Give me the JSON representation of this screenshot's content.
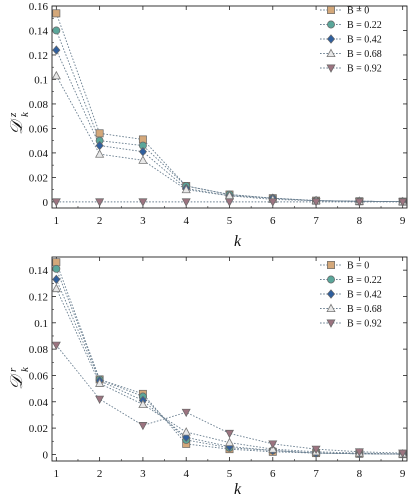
{
  "chart_data": [
    {
      "type": "line",
      "ylabel": {
        "symbol": "𝒟",
        "sup": "z",
        "sub": "k"
      },
      "xlabel": "k",
      "x": [
        1,
        2,
        3,
        4,
        5,
        6,
        7,
        8,
        9
      ],
      "xlim": [
        0.9,
        9.1
      ],
      "ylim": [
        -0.005,
        0.16
      ],
      "xticks": [
        "1",
        "2",
        "3",
        "4",
        "5",
        "6",
        "7",
        "8",
        "9"
      ],
      "yticks": [
        "0",
        "0.02",
        "0.04",
        "0.06",
        "0.08",
        "0.1",
        "0.12",
        "0.14",
        "0.16"
      ],
      "legend_position": "top-right",
      "grid": false,
      "series": [
        {
          "name": "B = 0",
          "marker": "square",
          "color": "#d4a87a",
          "values": [
            0.154,
            0.056,
            0.051,
            0.013,
            0.006,
            0.003,
            0.001,
            0.0005,
            0.0002
          ]
        },
        {
          "name": "B = 0.22",
          "marker": "circle",
          "color": "#5aa69a",
          "values": [
            0.14,
            0.05,
            0.046,
            0.013,
            0.006,
            0.003,
            0.001,
            0.0005,
            0.0002
          ]
        },
        {
          "name": "B = 0.42",
          "marker": "diamond",
          "color": "#2f5f9e",
          "values": [
            0.124,
            0.046,
            0.041,
            0.011,
            0.005,
            0.003,
            0.001,
            0.0005,
            0.0002
          ]
        },
        {
          "name": "B = 0.68",
          "marker": "triangle-up",
          "color": "#e8e8e8",
          "values": [
            0.103,
            0.039,
            0.034,
            0.01,
            0.005,
            0.002,
            0.001,
            0.0005,
            0.0002
          ]
        },
        {
          "name": "B = 0.92",
          "marker": "triangle-down",
          "color": "#9c7480",
          "values": [
            0,
            0,
            0,
            0,
            0,
            0,
            0,
            0,
            0
          ]
        }
      ]
    },
    {
      "type": "line",
      "ylabel": {
        "symbol": "𝒟",
        "sup": "r",
        "sub": "k"
      },
      "xlabel": "k",
      "x": [
        1,
        2,
        3,
        4,
        5,
        6,
        7,
        8,
        9
      ],
      "xlim": [
        0.9,
        9.1
      ],
      "ylim": [
        -0.005,
        0.15
      ],
      "xticks": [
        "1",
        "2",
        "3",
        "4",
        "5",
        "6",
        "7",
        "8",
        "9"
      ],
      "yticks": [
        "0",
        "0.02",
        "0.04",
        "0.06",
        "0.08",
        "0.1",
        "0.12",
        "0.14"
      ],
      "legend_position": "top-right",
      "grid": false,
      "series": [
        {
          "name": "B = 0",
          "marker": "square",
          "color": "#d4a87a",
          "values": [
            0.146,
            0.057,
            0.046,
            0.008,
            0.004,
            0.002,
            0.001,
            0.0005,
            0.0002
          ]
        },
        {
          "name": "B = 0.22",
          "marker": "circle",
          "color": "#5aa69a",
          "values": [
            0.141,
            0.057,
            0.044,
            0.011,
            0.005,
            0.003,
            0.001,
            0.0005,
            0.0002
          ]
        },
        {
          "name": "B = 0.42",
          "marker": "diamond",
          "color": "#2f5f9e",
          "values": [
            0.133,
            0.056,
            0.041,
            0.013,
            0.006,
            0.003,
            0.001,
            0.0005,
            0.0002
          ]
        },
        {
          "name": "B = 0.68",
          "marker": "triangle-up",
          "color": "#e8e8e8",
          "values": [
            0.126,
            0.054,
            0.038,
            0.017,
            0.009,
            0.004,
            0.002,
            0.001,
            0.0004
          ]
        },
        {
          "name": "B = 0.92",
          "marker": "triangle-down",
          "color": "#9c7480",
          "values": [
            0.083,
            0.042,
            0.022,
            0.032,
            0.016,
            0.008,
            0.004,
            0.002,
            0.001
          ]
        }
      ]
    }
  ]
}
